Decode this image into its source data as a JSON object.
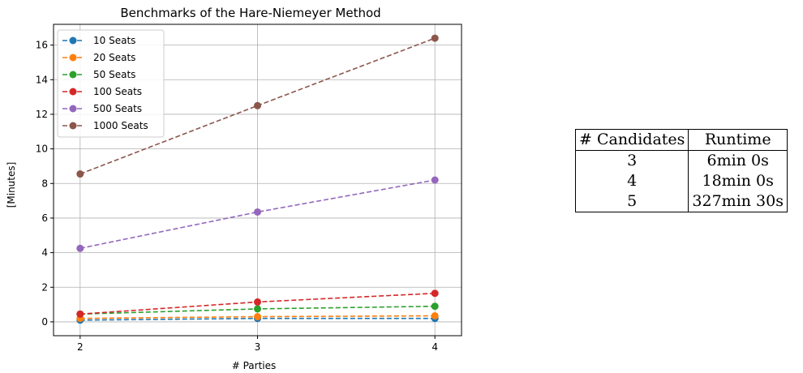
{
  "chart_data": {
    "type": "line",
    "title": "Benchmarks of the Hare-Niemeyer Method",
    "xlabel": "# Parties",
    "ylabel": "[Minutes]",
    "x": [
      2,
      3,
      4
    ],
    "x_ticks": [
      "2",
      "3",
      "4"
    ],
    "y_ticks": [
      "0",
      "2",
      "4",
      "6",
      "8",
      "10",
      "12",
      "14",
      "16"
    ],
    "xlim": [
      1.85,
      4.15
    ],
    "ylim": [
      -0.8,
      17.2
    ],
    "grid": true,
    "legend_position": "top-left",
    "line_style": "dashed",
    "series": [
      {
        "name": "10 Seats",
        "color": "#1f77b4",
        "values": [
          0.1,
          0.2,
          0.2
        ]
      },
      {
        "name": "20 Seats",
        "color": "#ff7f0e",
        "values": [
          0.2,
          0.3,
          0.35
        ]
      },
      {
        "name": "50 Seats",
        "color": "#2ca02c",
        "values": [
          0.45,
          0.75,
          0.9
        ]
      },
      {
        "name": "100 Seats",
        "color": "#d62728",
        "values": [
          0.45,
          1.15,
          1.65
        ]
      },
      {
        "name": "500 Seats",
        "color": "#9467bd",
        "values": [
          4.25,
          6.35,
          8.2
        ]
      },
      {
        "name": "1000 Seats",
        "color": "#8c564b",
        "values": [
          8.55,
          12.5,
          16.4
        ]
      }
    ]
  },
  "table": {
    "headers": [
      "# Candidates",
      "Runtime"
    ],
    "rows": [
      {
        "candidates": "3",
        "runtime": "6min 0s"
      },
      {
        "candidates": "4",
        "runtime": "18min 0s"
      },
      {
        "candidates": "5",
        "runtime": "327min 30s"
      }
    ]
  }
}
